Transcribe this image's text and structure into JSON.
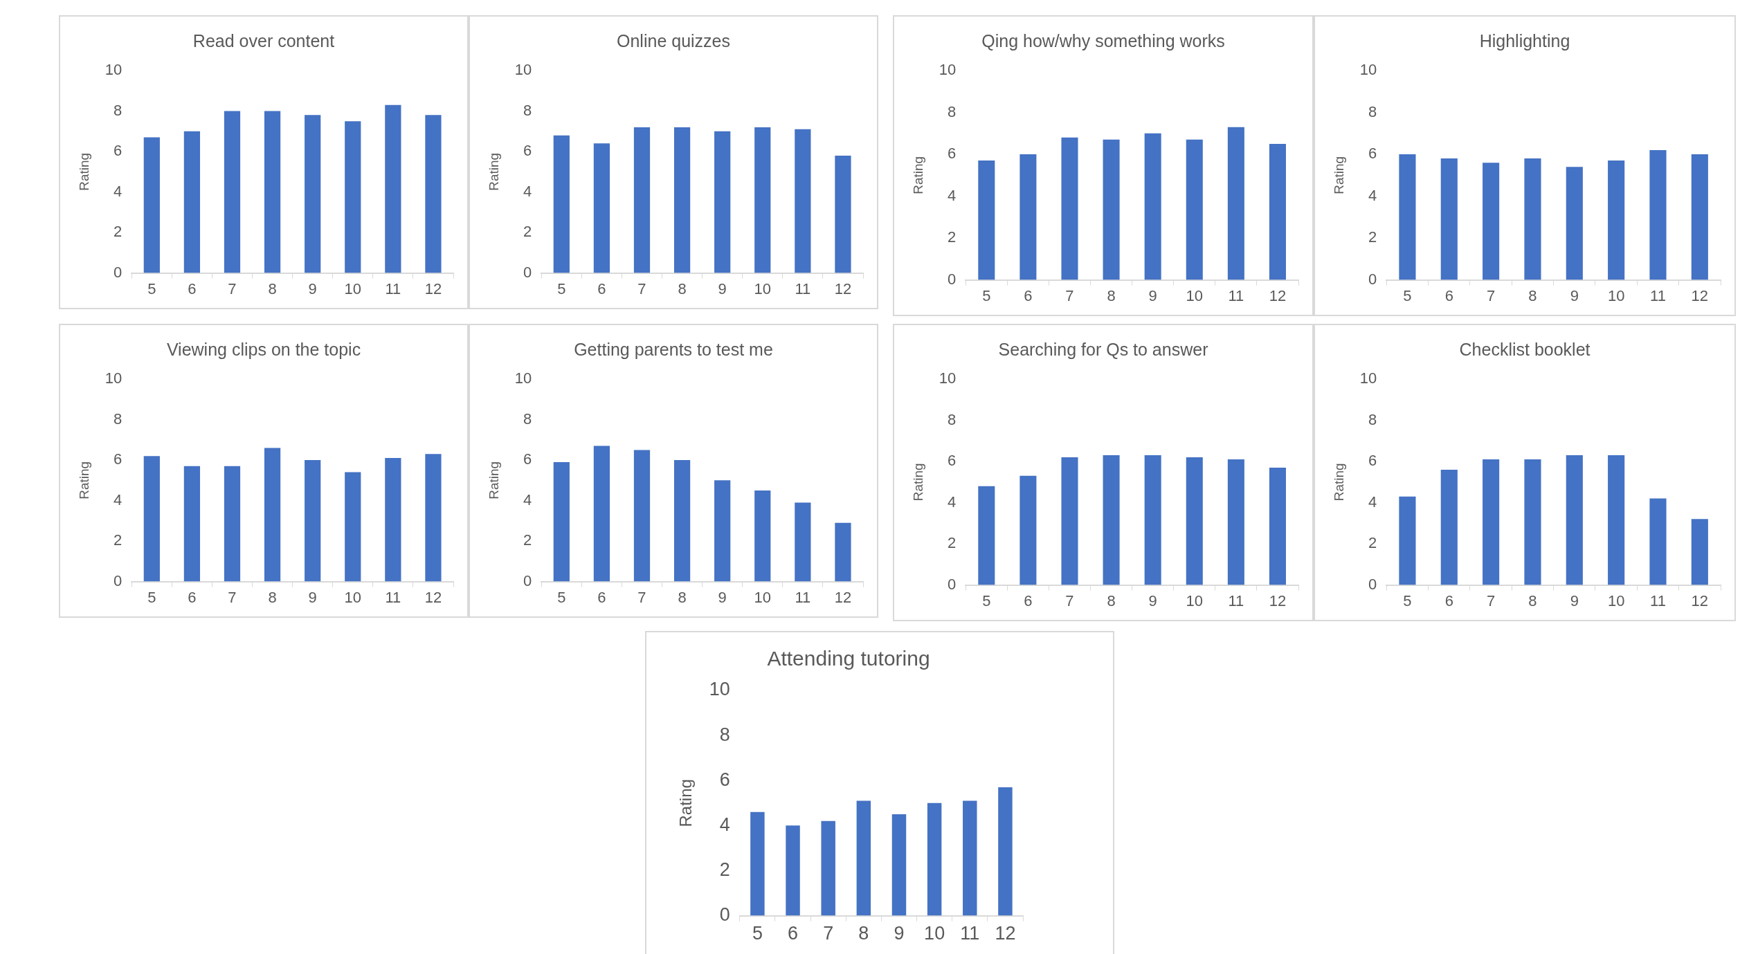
{
  "chart_data": [
    {
      "type": "bar",
      "title": "Read over content",
      "ylabel": "Rating",
      "categories": [
        "5",
        "6",
        "7",
        "8",
        "9",
        "10",
        "11",
        "12"
      ],
      "values": [
        6.7,
        7.0,
        8.0,
        8.0,
        7.8,
        7.5,
        8.3,
        7.8
      ],
      "color": "#4472c4",
      "ylim": [
        0,
        10
      ],
      "yticks": [
        0,
        2,
        4,
        6,
        8,
        10
      ]
    },
    {
      "type": "bar",
      "title": "Online quizzes",
      "ylabel": "Rating",
      "categories": [
        "5",
        "6",
        "7",
        "8",
        "9",
        "10",
        "11",
        "12"
      ],
      "values": [
        6.8,
        6.4,
        7.2,
        7.2,
        7.0,
        7.2,
        7.1,
        5.8
      ],
      "color": "#4472c4",
      "ylim": [
        0,
        10
      ],
      "yticks": [
        0,
        2,
        4,
        6,
        8,
        10
      ]
    },
    {
      "type": "bar",
      "title": "Qing how/why something works",
      "ylabel": "Rating",
      "categories": [
        "5",
        "6",
        "7",
        "8",
        "9",
        "10",
        "11",
        "12"
      ],
      "values": [
        5.7,
        6.0,
        6.8,
        6.7,
        7.0,
        6.7,
        7.3,
        6.5
      ],
      "color": "#4472c4",
      "ylim": [
        0,
        10
      ],
      "yticks": [
        0,
        2,
        4,
        6,
        8,
        10
      ]
    },
    {
      "type": "bar",
      "title": "Highlighting",
      "ylabel": "Rating",
      "categories": [
        "5",
        "6",
        "7",
        "8",
        "9",
        "10",
        "11",
        "12"
      ],
      "values": [
        6.0,
        5.8,
        5.6,
        5.8,
        5.4,
        5.7,
        6.2,
        6.0
      ],
      "color": "#4472c4",
      "ylim": [
        0,
        10
      ],
      "yticks": [
        0,
        2,
        4,
        6,
        8,
        10
      ]
    },
    {
      "type": "bar",
      "title": "Viewing clips on the topic",
      "ylabel": "Rating",
      "categories": [
        "5",
        "6",
        "7",
        "8",
        "9",
        "10",
        "11",
        "12"
      ],
      "values": [
        6.2,
        5.7,
        5.7,
        6.6,
        6.0,
        5.4,
        6.1,
        6.3
      ],
      "color": "#4472c4",
      "ylim": [
        0,
        10
      ],
      "yticks": [
        0,
        2,
        4,
        6,
        8,
        10
      ]
    },
    {
      "type": "bar",
      "title": "Getting parents to test me",
      "ylabel": "Rating",
      "categories": [
        "5",
        "6",
        "7",
        "8",
        "9",
        "10",
        "11",
        "12"
      ],
      "values": [
        5.9,
        6.7,
        6.5,
        6.0,
        5.0,
        4.5,
        3.9,
        2.9
      ],
      "color": "#4472c4",
      "ylim": [
        0,
        10
      ],
      "yticks": [
        0,
        2,
        4,
        6,
        8,
        10
      ]
    },
    {
      "type": "bar",
      "title": "Searching for Qs to answer",
      "ylabel": "Rating",
      "categories": [
        "5",
        "6",
        "7",
        "8",
        "9",
        "10",
        "11",
        "12"
      ],
      "values": [
        4.8,
        5.3,
        6.2,
        6.3,
        6.3,
        6.2,
        6.1,
        5.7
      ],
      "color": "#4472c4",
      "ylim": [
        0,
        10
      ],
      "yticks": [
        0,
        2,
        4,
        6,
        8,
        10
      ]
    },
    {
      "type": "bar",
      "title": "Checklist booklet",
      "ylabel": "Rating",
      "categories": [
        "5",
        "6",
        "7",
        "8",
        "9",
        "10",
        "11",
        "12"
      ],
      "values": [
        4.3,
        5.6,
        6.1,
        6.1,
        6.3,
        6.3,
        4.2,
        3.2
      ],
      "color": "#4472c4",
      "ylim": [
        0,
        10
      ],
      "yticks": [
        0,
        2,
        4,
        6,
        8,
        10
      ]
    },
    {
      "type": "bar",
      "title": "Attending tutoring",
      "ylabel": "Rating",
      "categories": [
        "5",
        "6",
        "7",
        "8",
        "9",
        "10",
        "11",
        "12"
      ],
      "values": [
        4.6,
        4.0,
        4.2,
        5.1,
        4.5,
        5.0,
        5.1,
        5.7
      ],
      "color": "#4472c4",
      "ylim": [
        0,
        10
      ],
      "yticks": [
        0,
        2,
        4,
        6,
        8,
        10
      ]
    }
  ]
}
